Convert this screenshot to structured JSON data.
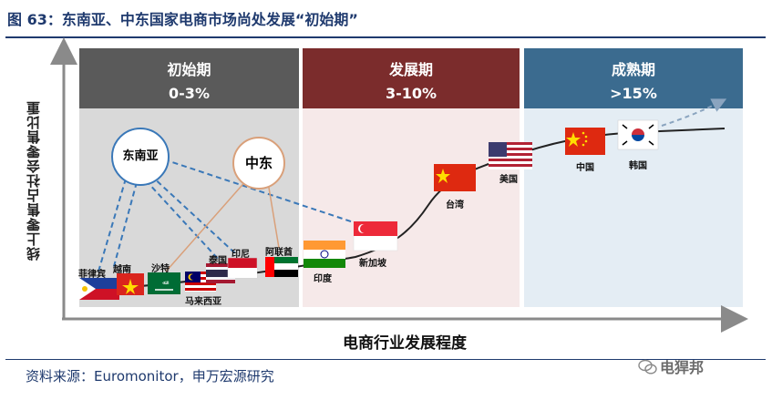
{
  "title": "图 63：东南亚、中东国家电商市场尚处发展“初始期”",
  "y_axis_label": "线上零售占社会零售比重",
  "x_axis_label": "电商行业发展程度",
  "source": "资料来源：Euromonitor，申万宏源研究",
  "watermark": "电猂邦",
  "stages": [
    {
      "name": "初始期",
      "range": "0-3%",
      "header_color": "#5a5a5a",
      "body_color": "#d9d9d9"
    },
    {
      "name": "发展期",
      "range": "3-10%",
      "header_color": "#7b2c2c",
      "body_color": "#f6e9e9"
    },
    {
      "name": "成熟期",
      "range": ">15%",
      "header_color": "#3b6b8f",
      "body_color": "#e4edf4"
    }
  ],
  "bubbles": {
    "southeast_asia": "东南亚",
    "middle_east": "中东"
  },
  "countries": [
    {
      "label": "菲律宾"
    },
    {
      "label": "越南"
    },
    {
      "label": "沙特"
    },
    {
      "label": "马来西亚"
    },
    {
      "label": "泰国"
    },
    {
      "label": "印尼"
    },
    {
      "label": "阿联酋"
    },
    {
      "label": "印度"
    },
    {
      "label": "新加坡"
    },
    {
      "label": "台湾"
    },
    {
      "label": "美国"
    },
    {
      "label": "中国"
    },
    {
      "label": "韩国"
    }
  ],
  "colors": {
    "title": "#1f3a6e",
    "dashed_link": "#3a78b8",
    "solid_link": "#d9a07a",
    "curve": "#222222"
  }
}
